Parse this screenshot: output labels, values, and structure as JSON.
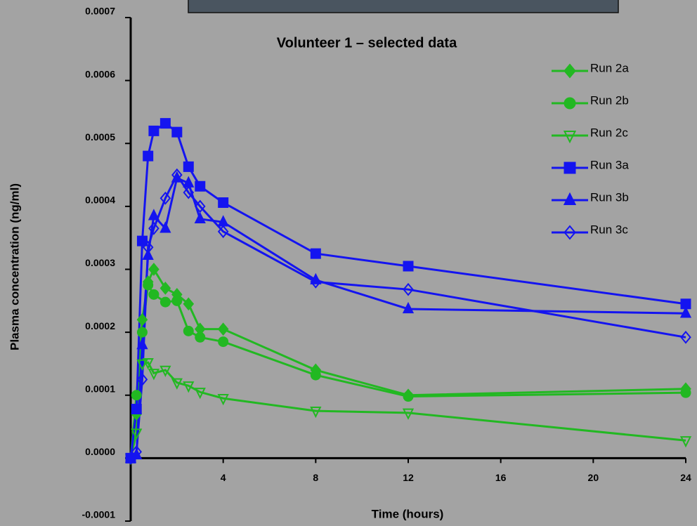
{
  "chart_data": {
    "type": "line",
    "title": "Volunteer 1 – selected data",
    "x_label": "Time (hours)",
    "y_label": "Plasma concentration (ng/ml)",
    "x": [
      0,
      0.25,
      0.5,
      0.75,
      1,
      1.5,
      2,
      2.5,
      3,
      4,
      8,
      12,
      24
    ],
    "xlim": [
      0,
      24
    ],
    "xticks": [
      4,
      8,
      12,
      16,
      20,
      24
    ],
    "ylim": [
      -0.0001,
      0.0007
    ],
    "yticks": [
      {
        "value": -0.0001,
        "label": "-0.0001"
      },
      {
        "value": 0,
        "label": "0.0000"
      },
      0.0001,
      0.0002,
      0.0003,
      0.0004,
      0.0005,
      0.0006,
      0.0007
    ],
    "grid": false,
    "legend": "top-right",
    "series": [
      {
        "name": "Run 2a",
        "color": "#22b822",
        "marker": "diamond",
        "filled": true,
        "values": [
          0,
          7e-05,
          0.00022,
          0.00028,
          0.0003,
          0.00027,
          0.00026,
          0.000245,
          0.000205,
          0.000205,
          0.00014,
          0.0001,
          0.00011
        ]
      },
      {
        "name": "Run 2b",
        "color": "#22b822",
        "marker": "circle",
        "filled": true,
        "values": [
          0,
          0.0001,
          0.0002,
          0.000275,
          0.00026,
          0.000248,
          0.00025,
          0.000202,
          0.000192,
          0.000185,
          0.000132,
          9.8e-05,
          0.000104
        ]
      },
      {
        "name": "Run 2c",
        "color": "#22b822",
        "marker": "triangle-down",
        "filled": false,
        "values": [
          0,
          4e-05,
          0.00015,
          0.000152,
          0.000135,
          0.00014,
          0.00012,
          0.000115,
          0.000105,
          9.5e-05,
          7.5e-05,
          7.2e-05,
          2.8e-05
        ]
      },
      {
        "name": "Run 3a",
        "color": "#1414f0",
        "marker": "square",
        "filled": true,
        "values": [
          0,
          7.8e-05,
          0.000345,
          0.00048,
          0.00052,
          0.000532,
          0.000518,
          0.000463,
          0.000432,
          0.000406,
          0.000325,
          0.000305,
          0.000245
        ]
      },
      {
        "name": "Run 3b",
        "color": "#1414f0",
        "marker": "triangle",
        "filled": true,
        "values": [
          0,
          5e-06,
          0.00018,
          0.000322,
          0.000385,
          0.000365,
          0.000445,
          0.000437,
          0.00038,
          0.000375,
          0.000283,
          0.000237,
          0.00023
        ]
      },
      {
        "name": "Run 3c",
        "color": "#1414f0",
        "marker": "diamond",
        "filled": false,
        "values": [
          0,
          1e-05,
          0.000125,
          0.000335,
          0.000365,
          0.000413,
          0.00045,
          0.000422,
          0.0004,
          0.00036,
          0.00028,
          0.000268,
          0.000192
        ]
      }
    ]
  }
}
